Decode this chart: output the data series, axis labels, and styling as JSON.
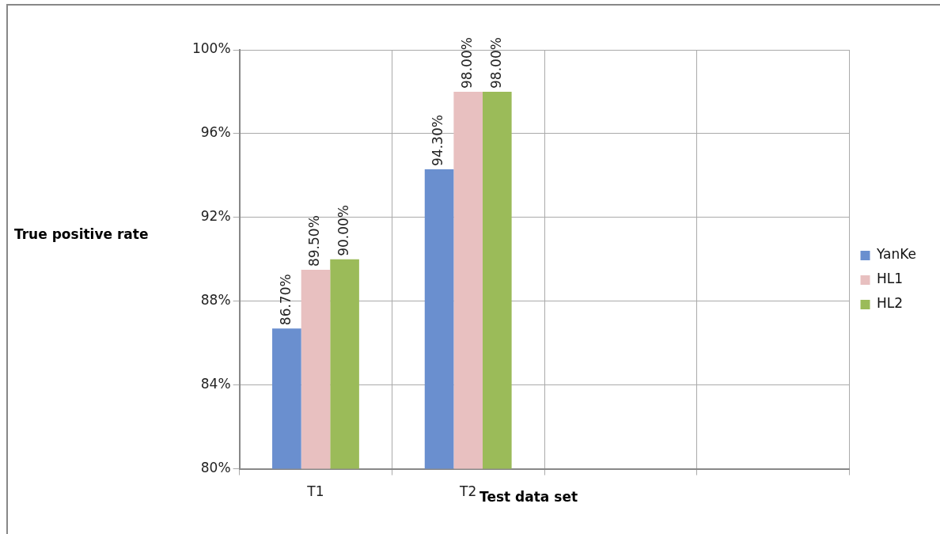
{
  "chart_data": {
    "type": "bar",
    "xlabel": "Test data set",
    "ylabel": "True positive rate",
    "categories": [
      "T1",
      "T2",
      null,
      null
    ],
    "series": [
      {
        "name": "YanKe",
        "color": "#6a8fcf",
        "values": [
          86.7,
          94.3,
          null,
          null
        ],
        "value_labels": [
          "86.70%",
          "94.30%",
          null,
          null
        ]
      },
      {
        "name": "HL1",
        "color": "#e8c0c0",
        "values": [
          89.5,
          98.0,
          null,
          null
        ],
        "value_labels": [
          "89.50%",
          "98.00%",
          null,
          null
        ]
      },
      {
        "name": "HL2",
        "color": "#9bbb59",
        "values": [
          90.0,
          98.0,
          null,
          null
        ],
        "value_labels": [
          "90.00%",
          "98.00%",
          null,
          null
        ]
      }
    ],
    "ylim": [
      80,
      100
    ],
    "yticks": [
      {
        "value": 80,
        "label": "80%"
      },
      {
        "value": 84,
        "label": "84%"
      },
      {
        "value": 88,
        "label": "88%"
      },
      {
        "value": 92,
        "label": "92%"
      },
      {
        "value": 96,
        "label": "96%"
      },
      {
        "value": 100,
        "label": "100%"
      }
    ],
    "grid": true,
    "legend": "right"
  }
}
